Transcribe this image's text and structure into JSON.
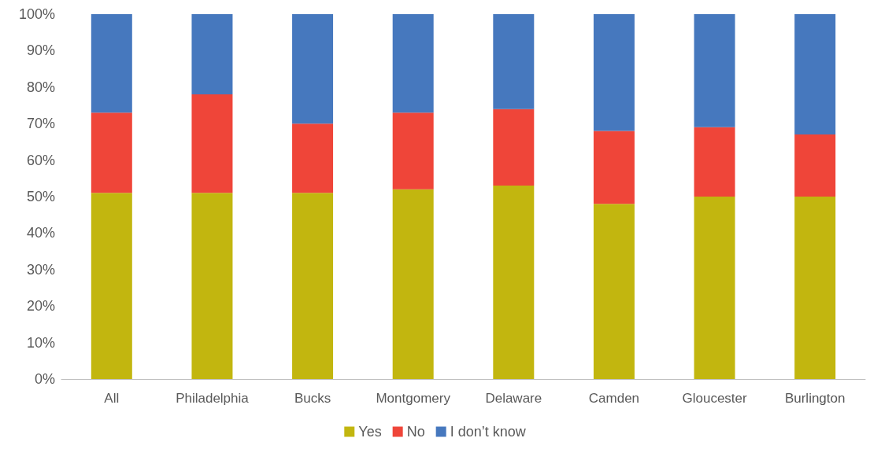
{
  "chart_data": {
    "type": "bar",
    "stacked": true,
    "categories": [
      "All",
      "Philadelphia",
      "Bucks",
      "Montgomery",
      "Delaware",
      "Camden",
      "Gloucester",
      "Burlington"
    ],
    "series": [
      {
        "name": "Yes",
        "color": "#c2b60f",
        "values": [
          51,
          51,
          51,
          52,
          53,
          48,
          50,
          50
        ]
      },
      {
        "name": "No",
        "color": "#ef4539",
        "values": [
          22,
          27,
          19,
          21,
          21,
          20,
          19,
          17
        ]
      },
      {
        "name": "I don’t know",
        "color": "#4678be",
        "values": [
          27,
          22,
          30,
          27,
          26,
          32,
          31,
          33
        ]
      }
    ],
    "ylim": [
      0,
      100
    ],
    "yticks": [
      {
        "value": 0,
        "label": "0%"
      },
      {
        "value": 10,
        "label": "10%"
      },
      {
        "value": 20,
        "label": "20%"
      },
      {
        "value": 30,
        "label": "30%"
      },
      {
        "value": 40,
        "label": "40%"
      },
      {
        "value": 50,
        "label": "50%"
      },
      {
        "value": 60,
        "label": "60%"
      },
      {
        "value": 70,
        "label": "70%"
      },
      {
        "value": 80,
        "label": "80%"
      },
      {
        "value": 90,
        "label": "90%"
      },
      {
        "value": 100,
        "label": "100%"
      }
    ],
    "grid": false,
    "legend": "bottom"
  }
}
